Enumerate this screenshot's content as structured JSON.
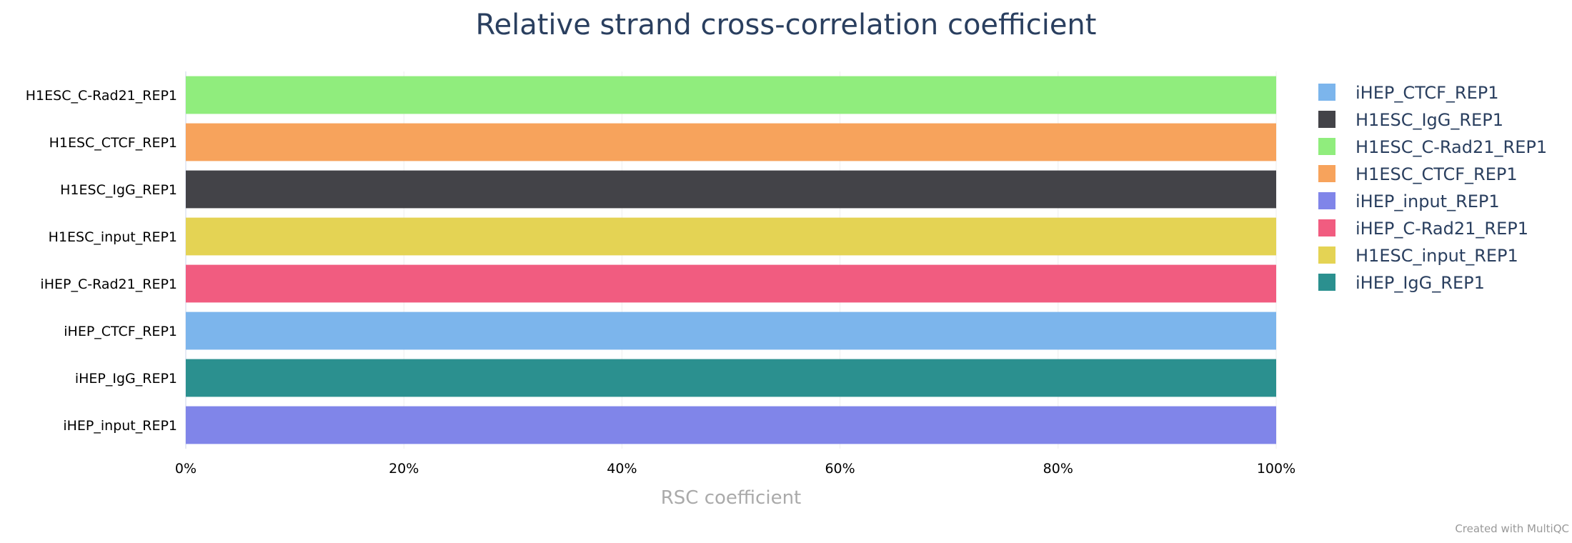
{
  "chart_data": {
    "type": "bar",
    "orientation": "horizontal",
    "title": "Relative strand cross-correlation coefficient",
    "xlabel": "RSC coefficient",
    "ylabel": "",
    "xlim": [
      0,
      100
    ],
    "x_ticks": [
      "0%",
      "20%",
      "40%",
      "60%",
      "80%",
      "100%"
    ],
    "grid": true,
    "categories": [
      "H1ESC_C-Rad21_REP1",
      "H1ESC_CTCF_REP1",
      "H1ESC_IgG_REP1",
      "H1ESC_input_REP1",
      "iHEP_C-Rad21_REP1",
      "iHEP_CTCF_REP1",
      "iHEP_IgG_REP1",
      "iHEP_input_REP1"
    ],
    "values": [
      100,
      100,
      100,
      100,
      100,
      100,
      100,
      100
    ],
    "colors": [
      "#90ed7d",
      "#f7a35c",
      "#434348",
      "#e4d354",
      "#f15c80",
      "#7cb5ec",
      "#2b908f",
      "#8085e9"
    ],
    "legend_position": "right",
    "legend": [
      {
        "name": "iHEP_CTCF_REP1",
        "color": "#7cb5ec"
      },
      {
        "name": "H1ESC_IgG_REP1",
        "color": "#434348"
      },
      {
        "name": "H1ESC_C-Rad21_REP1",
        "color": "#90ed7d"
      },
      {
        "name": "H1ESC_CTCF_REP1",
        "color": "#f7a35c"
      },
      {
        "name": "iHEP_input_REP1",
        "color": "#8085e9"
      },
      {
        "name": "iHEP_C-Rad21_REP1",
        "color": "#f15c80"
      },
      {
        "name": "H1ESC_input_REP1",
        "color": "#e4d354"
      },
      {
        "name": "iHEP_IgG_REP1",
        "color": "#2b908f"
      }
    ]
  },
  "credit": "Created with MultiQC"
}
